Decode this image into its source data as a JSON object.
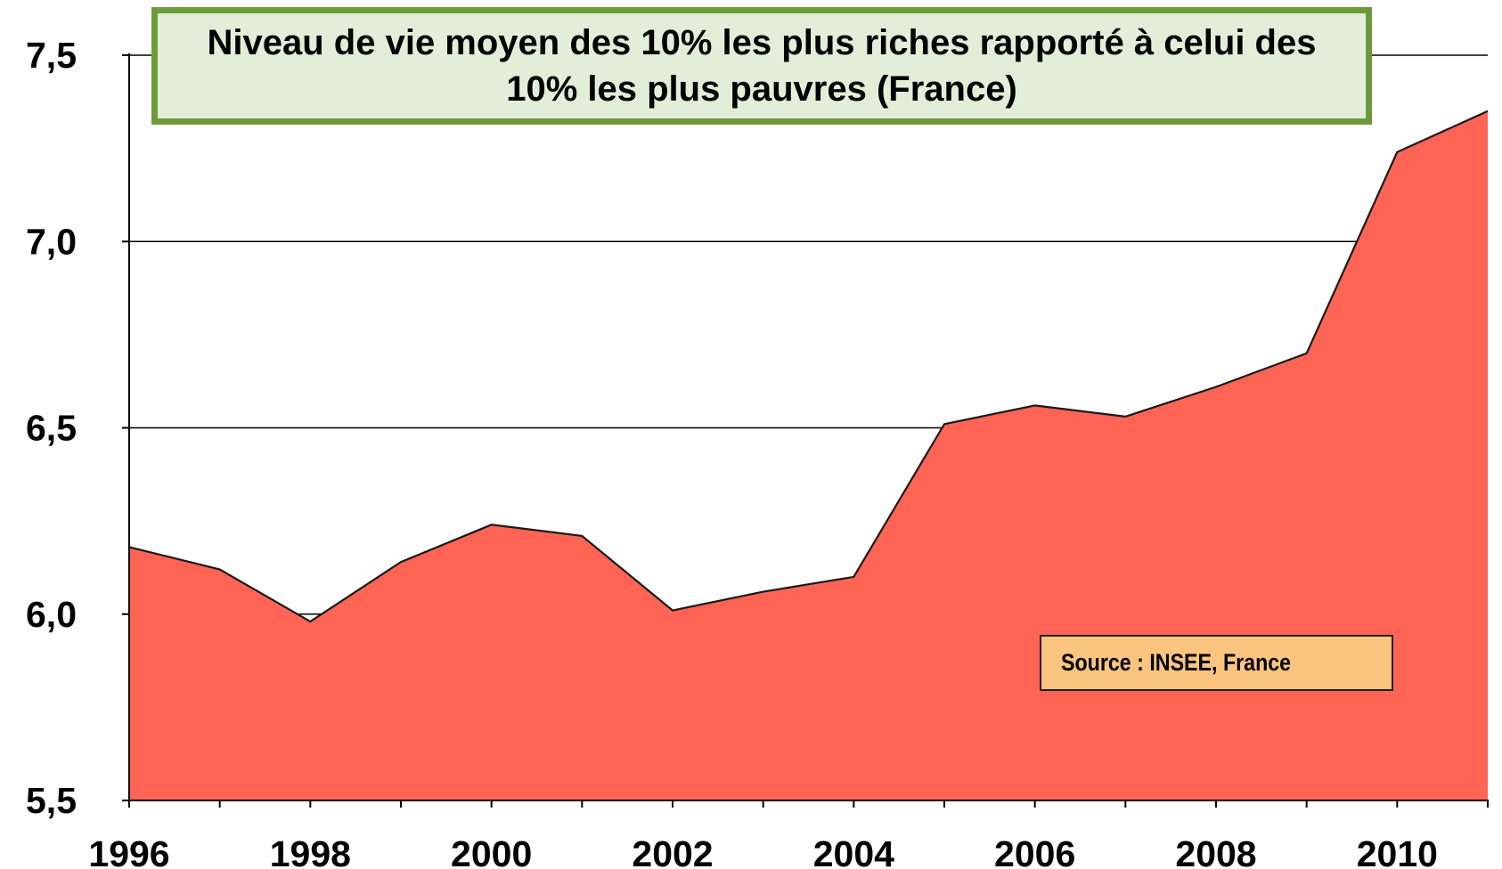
{
  "chart_data": {
    "type": "area",
    "title": "Niveau de vie moyen des 10% les plus riches rapporté à celui des 10% les plus pauvres (France)",
    "source": "Source : INSEE, France",
    "x": [
      1996,
      1997,
      1998,
      1999,
      2000,
      2001,
      2002,
      2003,
      2004,
      2005,
      2006,
      2007,
      2008,
      2009,
      2010,
      2011
    ],
    "series": [
      {
        "values": [
          6.18,
          6.12,
          5.98,
          6.14,
          6.24,
          6.21,
          6.01,
          6.06,
          6.1,
          6.51,
          6.56,
          6.53,
          6.61,
          6.7,
          7.24,
          7.35
        ]
      }
    ],
    "xticks": [
      "1996",
      "1998",
      "2000",
      "2002",
      "2004",
      "2006",
      "2008",
      "2010"
    ],
    "yticks": [
      "5,5",
      "6,0",
      "6,5",
      "7,0",
      "7,5"
    ],
    "ylim": [
      5.5,
      7.5
    ],
    "xlim": [
      1996,
      2011
    ],
    "xlabel": "",
    "ylabel": "",
    "grid": true,
    "colors": {
      "area_fill": "#ff6455",
      "area_stroke": "#1a1a1a",
      "title_bg": "#e3eed8",
      "title_border": "#6f9a3b",
      "source_bg": "#fcc57f"
    }
  }
}
